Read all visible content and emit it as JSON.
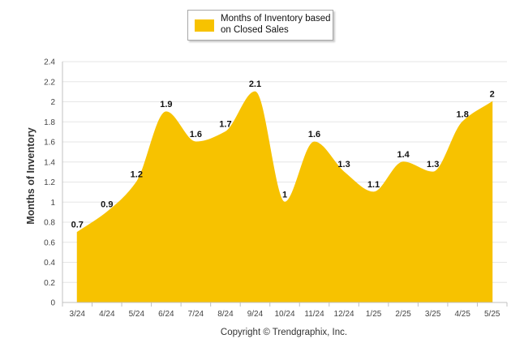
{
  "chart_data": {
    "type": "area",
    "title": "",
    "legend": {
      "position": "top-center",
      "label": "Months of Inventory based on Closed Sales"
    },
    "xlabel": "",
    "ylabel": "Months of Inventory",
    "categories": [
      "3/24",
      "4/24",
      "5/24",
      "6/24",
      "7/24",
      "8/24",
      "9/24",
      "10/24",
      "11/24",
      "12/24",
      "1/25",
      "2/25",
      "3/25",
      "4/25",
      "5/25"
    ],
    "series": [
      {
        "name": "Months of Inventory based on Closed Sales",
        "values": [
          0.7,
          0.9,
          1.2,
          1.9,
          1.6,
          1.7,
          2.1,
          1,
          1.6,
          1.3,
          1.1,
          1.4,
          1.3,
          1.8,
          2
        ],
        "labels": [
          "0.7",
          "0.9",
          "1.2",
          "1.9",
          "1.6",
          "1.7",
          "2.1",
          "1",
          "1.6",
          "1.3",
          "1.1",
          "1.4",
          "1.3",
          "1.8",
          "2"
        ]
      }
    ],
    "ylim": [
      0,
      2.4
    ],
    "yticks": [
      "0",
      "0.2",
      "0.4",
      "0.6",
      "0.8",
      "1",
      "1.2",
      "1.4",
      "1.6",
      "1.8",
      "2",
      "2.2",
      "2.4"
    ],
    "grid": true,
    "colors": {
      "area": "#f7c200",
      "grid": "#e6e6e6",
      "axis": "#c0c0c0"
    }
  },
  "footer": {
    "copyright": "Copyright © Trendgraphix, Inc."
  }
}
